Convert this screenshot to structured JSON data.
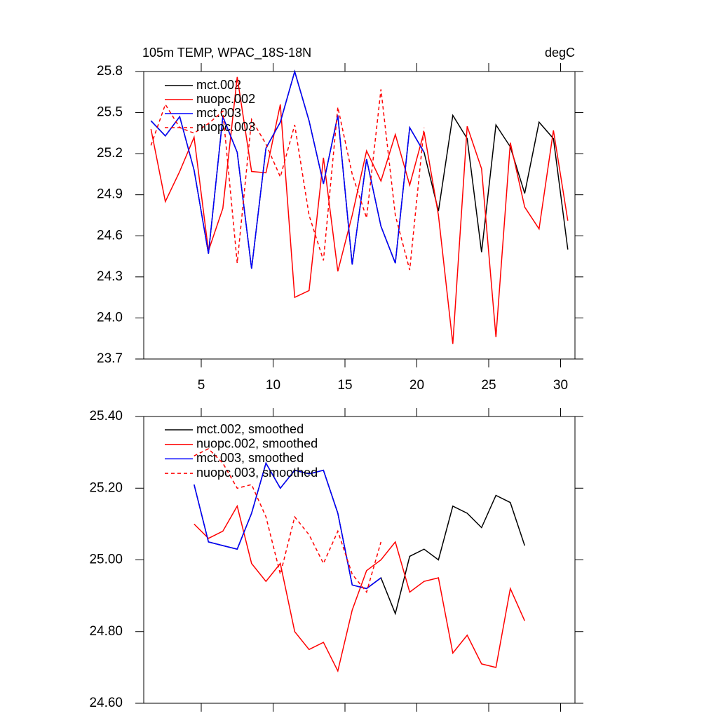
{
  "chart_data": [
    {
      "type": "line",
      "title": "105m TEMP, WPAC_18S-18N",
      "units": "degC",
      "x": [
        1.5,
        2.5,
        3.5,
        4.5,
        5.5,
        6.5,
        7.5,
        8.5,
        9.5,
        10.5,
        11.5,
        12.5,
        13.5,
        14.5,
        15.5,
        16.5,
        17.5,
        18.5,
        19.5,
        20.5,
        21.5,
        22.5,
        23.5,
        24.5,
        25.5,
        26.5,
        27.5,
        28.5,
        29.5,
        30.5
      ],
      "xlim": [
        1,
        31
      ],
      "xticks": [
        5,
        10,
        15,
        20,
        25,
        30
      ],
      "ylim": [
        23.7,
        25.8
      ],
      "yticks": [
        {
          "value": 23.7,
          "label": "23.7"
        },
        {
          "value": 24,
          "label": "24.0"
        },
        {
          "value": 24.3,
          "label": "24.3"
        },
        {
          "value": 24.6,
          "label": "24.6"
        },
        {
          "value": 24.9,
          "label": "24.9"
        },
        {
          "value": 25.2,
          "label": "25.2"
        },
        {
          "value": 25.5,
          "label": "25.5"
        },
        {
          "value": 25.8,
          "label": "25.8"
        }
      ],
      "series": [
        {
          "name": "mct.002",
          "color": "#000000",
          "dashed": false,
          "values": [
            25.44,
            25.33,
            25.47,
            25.08,
            24.47,
            25.47,
            25.21,
            24.36,
            25.24,
            25.43,
            25.8,
            25.44,
            24.98,
            25.48,
            24.39,
            25.16,
            24.67,
            24.4,
            25.39,
            25.21,
            24.78,
            25.48,
            25.31,
            24.48,
            25.41,
            25.25,
            24.91,
            25.43,
            25.31,
            24.5
          ]
        },
        {
          "name": "nuopc.002",
          "color": "#ff0000",
          "dashed": false,
          "values": [
            25.38,
            24.85,
            25.07,
            25.32,
            24.49,
            24.8,
            25.76,
            25.07,
            25.06,
            25.56,
            24.15,
            24.2,
            25.17,
            24.34,
            24.75,
            25.22,
            25.0,
            25.34,
            24.97,
            25.36,
            24.75,
            23.81,
            25.4,
            25.09,
            23.86,
            25.28,
            24.81,
            24.65,
            25.37,
            24.71
          ]
        },
        {
          "name": "mct.003",
          "color": "#0000ff",
          "dashed": false,
          "values": [
            25.44,
            25.33,
            25.47,
            25.08,
            24.47,
            25.47,
            25.21,
            24.36,
            25.24,
            25.43,
            25.8,
            25.44,
            24.98,
            25.48,
            24.39,
            25.16,
            24.67,
            24.4,
            25.39,
            25.21,
            null,
            null,
            null,
            null,
            null,
            null,
            null,
            null,
            null,
            null
          ]
        },
        {
          "name": "nuopc.003",
          "color": "#ff0000",
          "dashed": true,
          "values": [
            25.26,
            25.56,
            25.39,
            25.35,
            25.42,
            25.51,
            24.4,
            25.45,
            25.27,
            25.03,
            25.41,
            24.75,
            24.42,
            25.54,
            25.05,
            24.73,
            25.67,
            24.75,
            24.35,
            25.39,
            null,
            null,
            null,
            null,
            null,
            null,
            null,
            null,
            null,
            null
          ]
        }
      ]
    },
    {
      "type": "line",
      "x": [
        4.5,
        5.5,
        6.5,
        7.5,
        8.5,
        9.5,
        10.5,
        11.5,
        12.5,
        13.5,
        14.5,
        15.5,
        16.5,
        17.5,
        18.5,
        19.5,
        20.5,
        21.5,
        22.5,
        23.5,
        24.5,
        25.5,
        26.5,
        27.5
      ],
      "xlim": [
        1,
        31
      ],
      "xticks": [
        5,
        10,
        15,
        20,
        25,
        30
      ],
      "ylim": [
        24.6,
        25.4
      ],
      "yticks": [
        {
          "value": 24.6,
          "label": "24.60"
        },
        {
          "value": 24.8,
          "label": "24.80"
        },
        {
          "value": 25,
          "label": "25.00"
        },
        {
          "value": 25.2,
          "label": "25.20"
        },
        {
          "value": 25.4,
          "label": "25.40"
        }
      ],
      "series": [
        {
          "name": "mct.002, smoothed",
          "color": "#000000",
          "dashed": false,
          "values": [
            25.21,
            25.05,
            25.04,
            25.03,
            25.13,
            25.27,
            25.2,
            25.25,
            25.24,
            25.25,
            25.13,
            24.93,
            24.92,
            24.95,
            24.85,
            25.01,
            25.03,
            25.0,
            25.15,
            25.13,
            25.09,
            25.18,
            25.16,
            25.04
          ]
        },
        {
          "name": "nuopc.002, smoothed",
          "color": "#ff0000",
          "dashed": false,
          "values": [
            25.1,
            25.06,
            25.08,
            25.15,
            24.99,
            24.94,
            24.99,
            24.8,
            24.75,
            24.77,
            24.69,
            24.86,
            24.97,
            25.0,
            25.05,
            24.91,
            24.94,
            24.95,
            24.74,
            24.79,
            24.71,
            24.7,
            24.92,
            24.83
          ]
        },
        {
          "name": "mct.003, smoothed",
          "color": "#0000ff",
          "dashed": false,
          "values": [
            25.21,
            25.05,
            25.04,
            25.03,
            25.13,
            25.27,
            25.2,
            25.25,
            25.24,
            25.25,
            25.13,
            24.93,
            24.92,
            24.95,
            null,
            null,
            null,
            null,
            null,
            null,
            null,
            null,
            null,
            null
          ]
        },
        {
          "name": "nuopc.003, smoothed",
          "color": "#ff0000",
          "dashed": true,
          "values": [
            25.29,
            25.31,
            25.27,
            25.2,
            25.21,
            25.12,
            24.96,
            25.12,
            25.07,
            24.99,
            25.08,
            24.96,
            24.91,
            25.05,
            null,
            null,
            null,
            null,
            null,
            null,
            null,
            null,
            null,
            null
          ]
        }
      ]
    }
  ]
}
